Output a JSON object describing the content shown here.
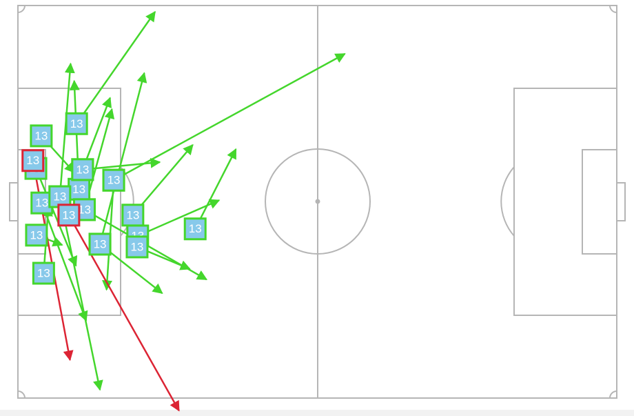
{
  "chart_data": {
    "type": "pass-map",
    "xlim": [
      0,
      100
    ],
    "ylim": [
      0,
      100
    ],
    "passes": [
      {
        "x": 9.8,
        "y": 30.1,
        "end_x": 22.9,
        "end_y": 1.6,
        "label": "13",
        "color": "#44d62c"
      },
      {
        "x": 3.9,
        "y": 33.2,
        "end_x": 9.4,
        "end_y": 42.5,
        "label": "13",
        "color": "#44d62c"
      },
      {
        "x": 7.0,
        "y": 48.7,
        "end_x": 8.8,
        "end_y": 14.8,
        "label": "13",
        "color": "#44d62c"
      },
      {
        "x": 10.2,
        "y": 46.8,
        "end_x": 9.4,
        "end_y": 19.2,
        "label": "13",
        "color": "#44d62c"
      },
      {
        "x": 10.8,
        "y": 41.8,
        "end_x": 15.4,
        "end_y": 23.5,
        "label": "13",
        "color": "#44d62c"
      },
      {
        "x": 11.1,
        "y": 52.0,
        "end_x": 15.7,
        "end_y": 26.4,
        "label": "13",
        "color": "#44d62c"
      },
      {
        "x": 16.0,
        "y": 44.5,
        "end_x": 54.6,
        "end_y": 12.3,
        "label": "13",
        "color": "#44d62c"
      },
      {
        "x": 10.8,
        "y": 41.8,
        "end_x": 23.7,
        "end_y": 39.9,
        "label": "13",
        "color": "#44d62c"
      },
      {
        "x": 19.2,
        "y": 53.4,
        "end_x": 29.2,
        "end_y": 35.5,
        "label": "13",
        "color": "#44d62c"
      },
      {
        "x": 29.6,
        "y": 56.9,
        "end_x": 36.4,
        "end_y": 36.6,
        "label": "13",
        "color": "#44d62c"
      },
      {
        "x": 20.0,
        "y": 58.7,
        "end_x": 33.6,
        "end_y": 49.6,
        "label": "13",
        "color": "#44d62c"
      },
      {
        "x": 13.7,
        "y": 60.8,
        "end_x": 21.1,
        "end_y": 17.2,
        "label": "13",
        "color": "#44d62c"
      },
      {
        "x": 11.1,
        "y": 52.0,
        "end_x": 31.5,
        "end_y": 69.8,
        "label": "13",
        "color": "#44d62c"
      },
      {
        "x": 19.9,
        "y": 61.5,
        "end_x": 28.7,
        "end_y": 67.1,
        "label": "13",
        "color": "#44d62c"
      },
      {
        "x": 13.7,
        "y": 60.8,
        "end_x": 24.1,
        "end_y": 73.3,
        "label": "13",
        "color": "#44d62c"
      },
      {
        "x": 16.0,
        "y": 44.5,
        "end_x": 14.8,
        "end_y": 72.4,
        "label": "13",
        "color": "#44d62c"
      },
      {
        "x": 4.0,
        "y": 50.3,
        "end_x": 11.4,
        "end_y": 80.3,
        "label": "13",
        "color": "#44d62c"
      },
      {
        "x": 7.0,
        "y": 48.7,
        "end_x": 13.7,
        "end_y": 97.9,
        "label": "13",
        "color": "#44d62c"
      },
      {
        "x": 4.3,
        "y": 68.2,
        "end_x": 5.1,
        "end_y": 51.3,
        "label": "13",
        "color": "#44d62c"
      },
      {
        "x": 3.1,
        "y": 58.5,
        "end_x": 7.4,
        "end_y": 61.0,
        "label": "13",
        "color": "#44d62c"
      },
      {
        "x": 3.0,
        "y": 41.5,
        "end_x": 9.7,
        "end_y": 66.3,
        "label": "13",
        "color": "#44d62c"
      },
      {
        "x": 2.5,
        "y": 39.5,
        "end_x": 8.7,
        "end_y": 90.3,
        "label": "13",
        "color": "#dc2434"
      },
      {
        "x": 8.5,
        "y": 53.4,
        "end_x": 26.9,
        "end_y": 103.2,
        "label": "13",
        "color": "#dc2434"
      }
    ]
  }
}
